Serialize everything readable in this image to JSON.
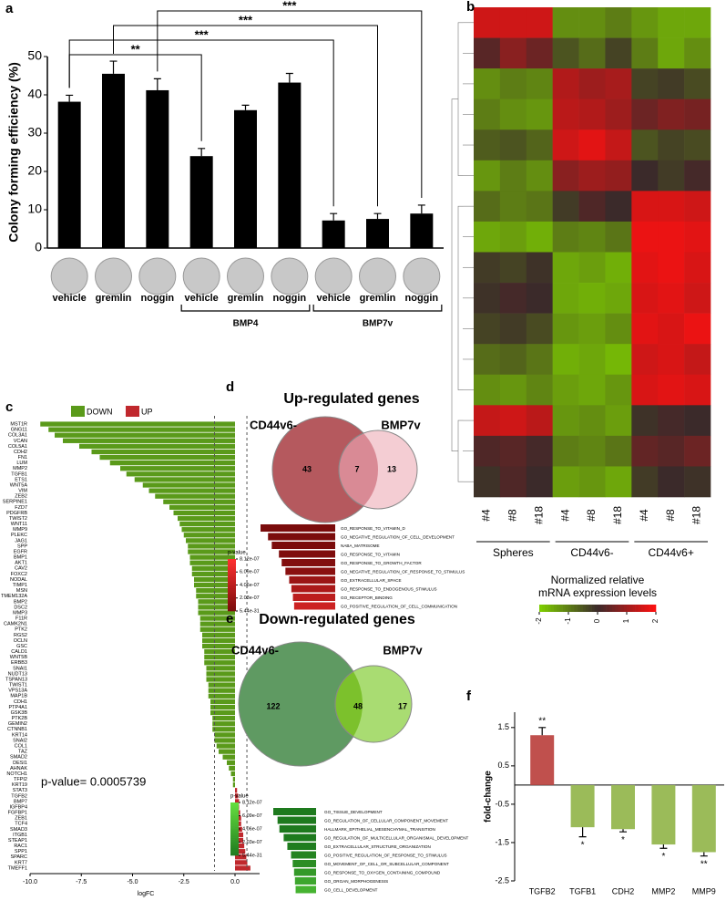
{
  "chart_data": [
    {
      "type": "bar",
      "panel": "a",
      "ylabel": "Colony forming efficiency (%)",
      "categories": [
        "vehicle",
        "gremlin",
        "noggin",
        "vehicle",
        "gremlin",
        "noggin",
        "vehicle",
        "gremlin",
        "noggin"
      ],
      "values": [
        38.2,
        45.5,
        41.2,
        24,
        36,
        43.2,
        7.2,
        7.6,
        9
      ],
      "errors": [
        1.7,
        3.3,
        3,
        2,
        1.3,
        2.4,
        1.8,
        1.4,
        2.2
      ],
      "color": "#000000",
      "ylim": [
        0,
        50
      ],
      "yticks": [
        0,
        10,
        20,
        30,
        40,
        50
      ],
      "groups": [
        {
          "label": "BMP4",
          "from": 3,
          "to": 5
        },
        {
          "label": "BMP7v",
          "from": 6,
          "to": 8
        }
      ],
      "annotations": [
        {
          "text": "**",
          "from": 0,
          "to": 3
        },
        {
          "text": "***",
          "from": 0,
          "to": 6
        },
        {
          "text": "***",
          "from": 1,
          "to": 7
        },
        {
          "text": "***",
          "from": 2,
          "to": 8
        }
      ]
    },
    {
      "type": "heatmap",
      "panel": "b",
      "x": [
        "#4",
        "#8",
        "#18",
        "#4",
        "#8",
        "#18",
        "#4",
        "#8",
        "#18"
      ],
      "groups": [
        {
          "label": "Spheres",
          "from": 0,
          "to": 2
        },
        {
          "label": "CD44v6-",
          "from": 3,
          "to": 5
        },
        {
          "label": "CD44v6+",
          "from": 6,
          "to": 8
        }
      ],
      "values": [
        [
          1.5,
          1.5,
          1.5,
          -1.2,
          -1.2,
          -1.0,
          -1.3,
          -1.5,
          -1.5
        ],
        [
          0.3,
          0.8,
          0.5,
          -0.5,
          -0.8,
          -0.3,
          -1.0,
          -1.5,
          -1.2
        ],
        [
          -1.2,
          -1.0,
          -1.1,
          1.2,
          1.0,
          1.1,
          -0.3,
          -0.2,
          -0.4
        ],
        [
          -1.0,
          -1.2,
          -1.3,
          1.3,
          1.2,
          1.0,
          0.5,
          0.7,
          0.6
        ],
        [
          -0.6,
          -0.5,
          -0.7,
          1.5,
          1.7,
          1.4,
          -0.5,
          -0.3,
          -0.4
        ],
        [
          -1.3,
          -1.0,
          -1.2,
          0.8,
          1.0,
          0.9,
          0,
          -0.2,
          0.1
        ],
        [
          -0.8,
          -1.0,
          -0.9,
          -0.2,
          0.2,
          0,
          1.6,
          1.6,
          1.5
        ],
        [
          -1.5,
          -1.4,
          -1.6,
          -1.0,
          -1.1,
          -0.9,
          1.8,
          1.8,
          1.7
        ],
        [
          -0.2,
          -0.3,
          -0.1,
          -1.5,
          -1.4,
          -1.6,
          1.7,
          1.8,
          1.6
        ],
        [
          -0.1,
          0.1,
          0,
          -1.5,
          -1.6,
          -1.5,
          1.6,
          1.7,
          1.5
        ],
        [
          -0.3,
          -0.2,
          -0.4,
          -1.3,
          -1.4,
          -1.2,
          1.7,
          1.6,
          1.8
        ],
        [
          -0.8,
          -0.7,
          -0.9,
          -1.6,
          -1.5,
          -1.7,
          1.5,
          1.6,
          1.4
        ],
        [
          -1.2,
          -1.3,
          -1.1,
          -1.4,
          -1.5,
          -1.3,
          1.6,
          1.7,
          1.6
        ],
        [
          1.4,
          1.5,
          1.3,
          -1.3,
          -1.2,
          -1.4,
          -0.1,
          0.1,
          0
        ],
        [
          0.2,
          0.3,
          0.1,
          -1.0,
          -1.1,
          -0.9,
          0.4,
          0.3,
          0.5
        ],
        [
          -0.1,
          0.2,
          0,
          -1.4,
          -1.3,
          -1.5,
          -0.2,
          0,
          -0.1
        ]
      ],
      "colorscale": [
        "#7fd000",
        "#3b2a2a",
        "#ff1010"
      ],
      "zlim": [
        -2,
        2
      ],
      "zticks": [
        -2,
        -1,
        0,
        1,
        2
      ],
      "colorbar_title": [
        "Normalized relative",
        "mRNA expression levels"
      ]
    },
    {
      "type": "hbar",
      "panel": "c",
      "xlabel": "logFC",
      "annotation": "p-value= 0.0005739",
      "legend": [
        {
          "name": "DOWN",
          "color": "#5a9a1a"
        },
        {
          "name": "UP",
          "color": "#c0282d"
        }
      ],
      "categories": [
        "MST1R",
        "GNG11",
        "COL3A1",
        "VCAN",
        "COL5A1",
        "CDH2",
        "FN1",
        "LUM",
        "MMP2",
        "TGFB1",
        "ETS1",
        "WNT5A",
        "VIM",
        "ZEB2",
        "SERPINE1",
        "FZD7",
        "PDGFRB",
        "TWIST2",
        "WNT11",
        "MMP9",
        "PLEKC",
        "JAG1",
        "SPP",
        "EGFR",
        "BMP1",
        "AKT1",
        "CAV2",
        "FOXC2",
        "NODAL",
        "TIMP1",
        "MSN",
        "TMEM132A",
        "BMP2",
        "DSC2",
        "MMP3",
        "F11R",
        "CAMK2N1",
        "PTK2",
        "RGS2",
        "OCLN",
        "GSC",
        "CALD1",
        "WNT5B",
        "ERBB3",
        "SNAI1",
        "NUDT13",
        "TSPAN13",
        "TWIST1",
        "VPS13A",
        "MAP1B",
        "CDH1",
        "PTP4A1",
        "GSK3B",
        "PTK2B",
        "GEMIN2",
        "CTNNB1",
        "KRT14",
        "SNAI2",
        "COL1",
        "TAZ",
        "SMAD2",
        "DESI1",
        "AHNAK",
        "NOTCH1",
        "TFPI2",
        "KRT19",
        "STAT3",
        "TGFB2",
        "BMP7",
        "IGFBP4",
        "FGFBP1",
        "ZEB1",
        "TCF4",
        "SMAD3",
        "ITGB1",
        "STEAP1",
        "RAC1",
        "SPP1",
        "SPARC",
        "KRT7",
        "TMEFF1"
      ],
      "values": [
        -9.5,
        -9.1,
        -8.8,
        -8.4,
        -7.6,
        -7.0,
        -6.6,
        -6.1,
        -5.6,
        -5.3,
        -4.9,
        -4.5,
        -4.2,
        -3.9,
        -3.5,
        -3.2,
        -3.0,
        -2.8,
        -2.7,
        -2.6,
        -2.5,
        -2.4,
        -2.3,
        -2.3,
        -2.2,
        -2.2,
        -2.1,
        -2.1,
        -2.0,
        -2.0,
        -1.9,
        -1.9,
        -1.8,
        -1.8,
        -1.8,
        -1.7,
        -1.7,
        -1.7,
        -1.6,
        -1.6,
        -1.6,
        -1.5,
        -1.5,
        -1.5,
        -1.4,
        -1.4,
        -1.4,
        -1.3,
        -1.3,
        -1.3,
        -1.2,
        -1.2,
        -1.2,
        -1.1,
        -1.1,
        -1.1,
        -1.0,
        -1.0,
        -0.9,
        -0.8,
        -0.6,
        -0.4,
        -0.3,
        -0.2,
        -0.1,
        -0.1,
        0.1,
        0.15,
        0.2,
        0.2,
        0.25,
        0.3,
        0.3,
        0.35,
        0.4,
        0.4,
        0.45,
        0.5,
        0.55,
        0.6,
        0.75
      ],
      "xlim": [
        -10,
        1.2
      ],
      "xticks": [
        {
          "value": -10,
          "label": "-10.0"
        },
        {
          "value": -7.5,
          "label": "-7.5"
        },
        {
          "value": -5,
          "label": "-5.0"
        },
        {
          "value": -2.5,
          "label": "-2.5"
        },
        {
          "value": 0,
          "label": "0.0"
        }
      ],
      "vlines": [
        -1,
        0.58
      ]
    },
    {
      "type": "venn",
      "panel": "d",
      "title": "Up-regulated genes",
      "sets": [
        "CD44v6-",
        "BMP7v"
      ],
      "values": [
        43,
        7,
        13
      ],
      "colors": [
        "#b5595e",
        "#f4cdd3",
        "#d98a95"
      ]
    },
    {
      "type": "go-bar",
      "legend_title": "p-value",
      "categories": [
        "GO_RESPONSE_TO_VITAMIN_D",
        "GO_NEGATIVE_REGULATION_OF_CELL_DEVELOPMENT",
        "NABA_MATRISOME",
        "GO_RESPONSE_TO_VITAMIN",
        "GO_RESPONSE_TO_GROWTH_FACTOR",
        "GO_NEGATIVE_REGULATION_OF_RESPONSE_TO_STIMULUS",
        "GO_EXTRACELLULAR_SPACE",
        "GO_RESPONSE_TO_ENDOGENOUS_STIMULUS",
        "GO_RECEPTOR_BINDING",
        "GO_POSITIVE_REGULATION_OF_CELL_COMMUNICATION"
      ],
      "values": [
        1e-09,
        4e-09,
        8e-09,
        3e-08,
        5e-08,
        1e-07,
        2e-07,
        3e-07,
        4e-07,
        5e-07
      ],
      "xscale": "log",
      "xlim": [
        0.001,
        1e-09
      ],
      "colorbar": {
        "colors": [
          "#7a0c0c",
          "#ff3030"
        ],
        "ticks": [
          {
            "value": 8.12e-07,
            "label": "8.12e-07"
          },
          {
            "value": 6.09e-07,
            "label": "6.09e-07"
          },
          {
            "value": 4.06e-07,
            "label": "4.06e-07"
          },
          {
            "value": 2.03e-07,
            "label": "2.03e-07"
          },
          {
            "value": 5.44e-31,
            "label": "5.44e-31"
          }
        ]
      }
    },
    {
      "type": "venn",
      "panel": "e",
      "title": "Down-regulated genes",
      "sets": [
        "CD44v6-",
        "BMP7v"
      ],
      "values": [
        122,
        48,
        17
      ],
      "colors": [
        "#5f9a62",
        "#a9dc72",
        "#7cc12c"
      ]
    },
    {
      "type": "go-bar",
      "legend_title": "p-value",
      "categories": [
        "GO_TISSUE_DEVELOPMENT",
        "GO_REGULATION_OF_CELLULAR_COMPONENT_MOVEMENT",
        "HALLMARK_EPITHELIAL_MESENCHYMAL_TRANSITION",
        "GO_REGULATION_OF_MULTICELLULAR_ORGANISMAL_DEVELOPMENT",
        "GO_EXTRACELLULAR_STRUCTURE_ORGANIZATION",
        "GO_POSITIVE_REGULATION_OF_RESPONSE_TO_STIMULUS",
        "GO_MOVEMENT_OF_CELL_OR_SUBCELLULAR_COMPONENT",
        "GO_RESPONSE_TO_OXYGEN_CONTAINING_COMPOUND",
        "GO_ORGAN_MORPHOGENESIS",
        "GO_CELL_DEVELOPMENT"
      ],
      "values": [
        1e-10,
        5e-10,
        1e-09,
        5e-09,
        2e-08,
        8e-08,
        1.5e-07,
        2.5e-07,
        3.5e-07,
        4.5e-07
      ],
      "xscale": "log",
      "xlim": [
        0.001,
        1e-10
      ],
      "colorbar": {
        "colors": [
          "#1e7a1e",
          "#66e040"
        ],
        "ticks": [
          {
            "value": 8.12e-07,
            "label": "8.12e-07"
          },
          {
            "value": 6.09e-07,
            "label": "6.09e-07"
          },
          {
            "value": 4.06e-07,
            "label": "4.06e-07"
          },
          {
            "value": 2.03e-07,
            "label": "2.03e-07"
          },
          {
            "value": 5.44e-31,
            "label": "5.44e-31"
          }
        ]
      }
    },
    {
      "type": "bar",
      "panel": "f",
      "ylabel": "fold-change",
      "categories": [
        "TGFB2",
        "TGFB1",
        "CDH2",
        "MMP2",
        "MMP9"
      ],
      "values": [
        1.3,
        -1.1,
        -1.15,
        -1.55,
        -1.75
      ],
      "errors": [
        0.2,
        0.25,
        0.07,
        0.1,
        0.1
      ],
      "significance": [
        "**",
        "*",
        "*",
        "*",
        "**"
      ],
      "colors": [
        "#c0504d",
        "#9bbb59",
        "#9bbb59",
        "#9bbb59",
        "#9bbb59"
      ],
      "ylim": [
        -2.5,
        1.9
      ],
      "yticks": [
        1.5,
        0.5,
        -0.5,
        -1.5,
        -2.5
      ]
    }
  ]
}
